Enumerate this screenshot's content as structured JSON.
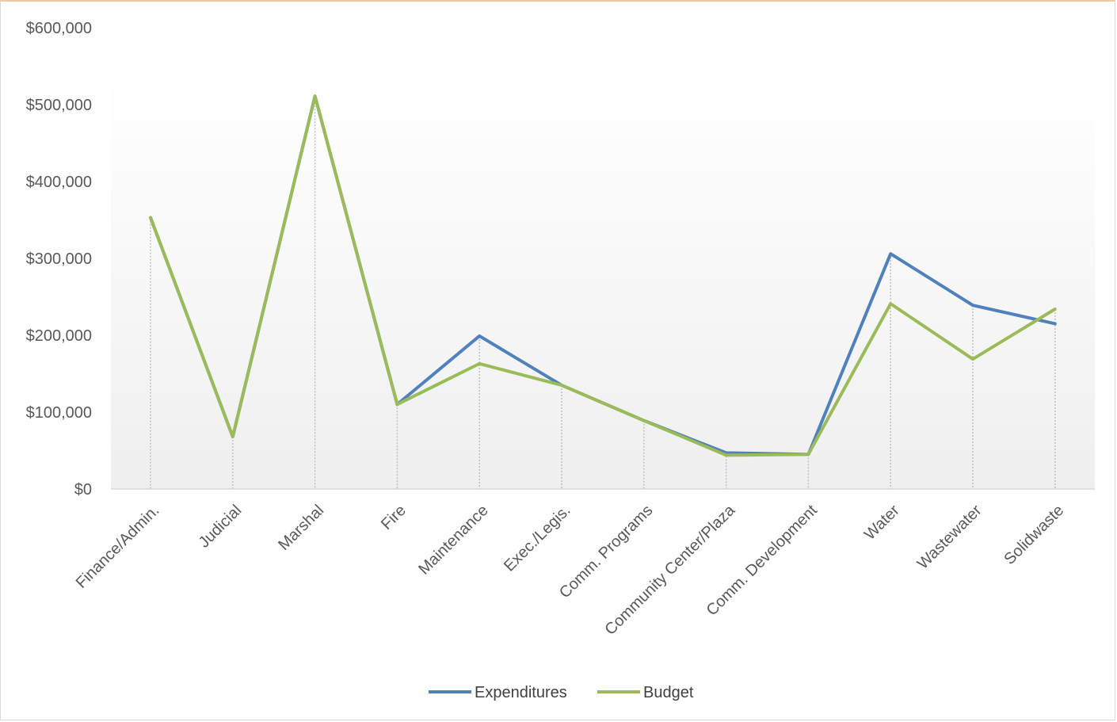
{
  "chart_data": {
    "type": "line",
    "title": "",
    "xlabel": "",
    "ylabel": "",
    "categories": [
      "Finance/Admin.",
      "Judicial",
      "Marshal",
      "Fire",
      "Maintenance",
      "Exec./Legis.",
      "Comm. Programs",
      "Community Center/Plaza",
      "Comm. Development",
      "Water",
      "Wastewater",
      "Solidwaste"
    ],
    "series": [
      {
        "name": "Expenditures",
        "color": "#4f81bd",
        "values": [
          353000,
          68000,
          511000,
          110000,
          199000,
          135000,
          89000,
          47000,
          45000,
          306000,
          239000,
          215000
        ]
      },
      {
        "name": "Budget",
        "color": "#9bbb59",
        "values": [
          353000,
          68000,
          511000,
          110000,
          163000,
          135000,
          89000,
          44000,
          45000,
          241000,
          169000,
          234000
        ]
      }
    ],
    "ylim": [
      0,
      600000
    ],
    "yticks": [
      0,
      100000,
      200000,
      300000,
      400000,
      500000,
      600000
    ],
    "ytick_labels": [
      "$0",
      "$100,000",
      "$200,000",
      "$300,000",
      "$400,000",
      "$500,000",
      "$600,000"
    ],
    "drop_lines": true,
    "legend_position": "bottom"
  }
}
